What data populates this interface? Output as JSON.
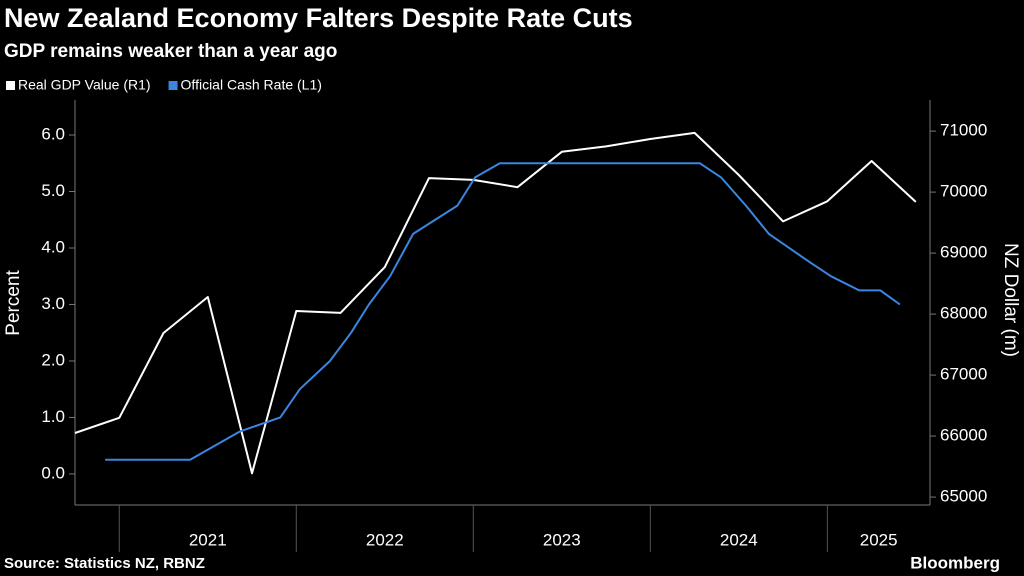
{
  "chart_data": {
    "type": "line",
    "title": "New Zealand Economy Falters Despite Rate Cuts",
    "subtitle": "GDP remains weaker than a year ago",
    "y_label": "Percent",
    "y2_label": "NZ Dollar (m)",
    "source": "Source: Statistics NZ, RBNZ",
    "brand": "Bloomberg",
    "xlim": [
      2020.75,
      2025.58
    ],
    "xticks": [
      2021,
      2022,
      2023,
      2024,
      2025
    ],
    "ylim": [
      -0.55,
      6.62
    ],
    "yticks": [
      {
        "value": 0,
        "label": "0.0"
      },
      {
        "value": 1,
        "label": "1.0"
      },
      {
        "value": 2,
        "label": "2.0"
      },
      {
        "value": 3,
        "label": "3.0"
      },
      {
        "value": 4,
        "label": "4.0"
      },
      {
        "value": 5,
        "label": "5.0"
      },
      {
        "value": 6,
        "label": "6.0"
      }
    ],
    "y2lim": [
      64870,
      71510
    ],
    "y2ticks": [
      65000,
      66000,
      67000,
      68000,
      69000,
      70000,
      71000
    ],
    "series": [
      {
        "name": "Real GDP Value (R1)",
        "color": "#ffffff",
        "axis": "y2",
        "x": [
          2020.75,
          2021,
          2021.25,
          2021.5,
          2021.75,
          2022,
          2022.25,
          2022.5,
          2022.75,
          2023,
          2023.25,
          2023.5,
          2023.75,
          2024,
          2024.25,
          2024.5,
          2024.75,
          2025,
          2025.25,
          2025.5
        ],
        "values": [
          66050,
          66300,
          67690,
          68280,
          65390,
          68050,
          68020,
          68770,
          70230,
          70200,
          70080,
          70660,
          70750,
          70870,
          70970,
          70280,
          69520,
          69850,
          70510,
          69840
        ]
      },
      {
        "name": "Official Cash Rate (L1)",
        "color": "#3a86e0",
        "axis": "y",
        "x": [
          2020.92,
          2021.4,
          2021.68,
          2021.91,
          2022.02,
          2022.19,
          2022.31,
          2022.41,
          2022.53,
          2022.66,
          2022.91,
          2023.01,
          2023.15,
          2024.28,
          2024.4,
          2024.54,
          2024.67,
          2024.9,
          2025.02,
          2025.18,
          2025.3,
          2025.41
        ],
        "values": [
          0.25,
          0.25,
          0.75,
          1.0,
          1.5,
          2.0,
          2.5,
          3.0,
          3.5,
          4.25,
          4.75,
          5.25,
          5.5,
          5.5,
          5.25,
          4.75,
          4.25,
          3.75,
          3.5,
          3.25,
          3.25,
          3.0
        ]
      }
    ]
  }
}
